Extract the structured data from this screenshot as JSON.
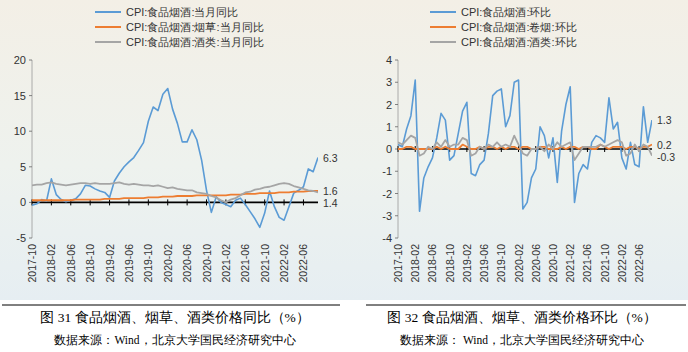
{
  "chart_data": [
    {
      "type": "line",
      "title": "图 31 食品烟酒、烟草、酒类价格同比（%）",
      "subtitle": "数据来源：Wind，北京大学国民经济研究中心",
      "categories": [
        "2017-10",
        null,
        null,
        null,
        "2018-02",
        null,
        null,
        null,
        "2018-06",
        null,
        null,
        null,
        "2018-10",
        null,
        null,
        null,
        "2019-02",
        null,
        null,
        null,
        "2019-06",
        null,
        null,
        null,
        "2019-10",
        null,
        null,
        null,
        "2020-02",
        null,
        null,
        null,
        "2020-06",
        null,
        null,
        null,
        "2020-10",
        null,
        null,
        null,
        "2021-02",
        null,
        null,
        null,
        "2021-06",
        null,
        null,
        null,
        "2021-10",
        null,
        null,
        null,
        "2022-02",
        null,
        null,
        null,
        "2022-06",
        null,
        null,
        null
      ],
      "series": [
        {
          "name": "CPI:食品烟酒:当月同比",
          "color": "#5b9bd5",
          "values": [
            -0.4,
            -0.2,
            0.4,
            0.2,
            3.3,
            1.1,
            0.4,
            0.1,
            0.3,
            0.5,
            1.2,
            2.4,
            2.3,
            1.9,
            1.6,
            1.4,
            0.7,
            3.0,
            4.1,
            5.0,
            5.7,
            6.3,
            7.3,
            8.4,
            11.4,
            13.4,
            12.9,
            15.2,
            16.0,
            13.1,
            11.1,
            8.5,
            8.5,
            10.2,
            8.8,
            5.9,
            1.7,
            -1.4,
            0.8,
            0.0,
            -0.3,
            -0.6,
            0.3,
            0.6,
            -0.3,
            -1.3,
            -2.3,
            -3.5,
            -1.5,
            1.6,
            -0.6,
            -2.1,
            -2.5,
            -0.6,
            1.3,
            1.7,
            2.2,
            4.7,
            4.3,
            6.3
          ]
        },
        {
          "name": "CPI:食品烟酒:烟草:当月同比",
          "color": "#ed7d31",
          "values": [
            0.3,
            0.3,
            0.3,
            0.3,
            0.3,
            0.3,
            0.3,
            0.3,
            0.3,
            0.4,
            0.4,
            0.4,
            0.4,
            0.4,
            0.4,
            0.5,
            0.5,
            0.5,
            0.5,
            0.6,
            0.6,
            0.6,
            0.6,
            0.6,
            0.7,
            0.7,
            0.7,
            0.8,
            0.8,
            0.8,
            0.9,
            0.9,
            0.9,
            0.9,
            1.0,
            1.0,
            1.0,
            1.0,
            1.0,
            1.0,
            1.0,
            1.1,
            1.1,
            1.1,
            1.2,
            1.2,
            1.2,
            1.3,
            1.3,
            1.3,
            1.3,
            1.4,
            1.4,
            1.4,
            1.5,
            1.5,
            1.5,
            1.6,
            1.6,
            1.6
          ]
        },
        {
          "name": "CPI:食品烟酒:酒类:当月同比",
          "color": "#a5a5a5",
          "values": [
            2.4,
            2.5,
            2.5,
            2.7,
            2.8,
            2.6,
            2.5,
            2.4,
            2.5,
            2.6,
            2.7,
            2.7,
            2.6,
            2.7,
            2.6,
            2.6,
            2.6,
            2.7,
            2.8,
            2.6,
            2.5,
            2.6,
            2.5,
            2.4,
            2.4,
            2.3,
            2.4,
            2.2,
            2.0,
            2.1,
            1.9,
            1.8,
            1.7,
            1.7,
            1.4,
            1.3,
            1.2,
            0.9,
            0.7,
            0.3,
            0.0,
            0.4,
            0.6,
            1.0,
            1.4,
            1.5,
            1.8,
            1.9,
            2.1,
            2.2,
            2.4,
            2.6,
            2.7,
            2.6,
            2.3,
            2.1,
            1.9,
            1.7,
            1.6,
            1.4
          ]
        }
      ],
      "annotations": [
        "6.3",
        "1.6",
        "1.4"
      ],
      "ylim": [
        -5,
        20
      ],
      "yticks": [
        -5,
        0,
        5,
        10,
        15,
        20
      ],
      "grid": false,
      "legend": "top"
    },
    {
      "type": "line",
      "title": "图 32 食品烟酒、烟草、酒类价格环比（%）",
      "subtitle": "数据来源：  Wind，北京大学国民经济研究中心",
      "categories": [
        "2017-10",
        null,
        null,
        null,
        "2018-02",
        null,
        null,
        null,
        "2018-06",
        null,
        null,
        null,
        "2018-10",
        null,
        null,
        null,
        "2019-02",
        null,
        null,
        null,
        "2019-06",
        null,
        null,
        null,
        "2019-10",
        null,
        null,
        null,
        "2020-02",
        null,
        null,
        null,
        "2020-06",
        null,
        null,
        null,
        "2020-10",
        null,
        null,
        null,
        "2021-02",
        null,
        null,
        null,
        "2021-06",
        null,
        null,
        null,
        "2021-10",
        null,
        null,
        null,
        "2022-02",
        null,
        null,
        null,
        "2022-06",
        null,
        null,
        null
      ],
      "series": [
        {
          "name": "CPI:食品烟酒:环比",
          "color": "#5b9bd5",
          "values": [
            0.2,
            0.1,
            0.9,
            1.5,
            3.1,
            -2.8,
            -1.3,
            -0.8,
            -0.4,
            0.5,
            1.6,
            1.3,
            -0.5,
            -0.3,
            0.7,
            1.7,
            2.1,
            -1.1,
            -1.2,
            -0.7,
            -0.5,
            0.7,
            2.4,
            2.6,
            2.7,
            1.0,
            1.5,
            3.0,
            3.1,
            -2.7,
            -2.4,
            -1.3,
            -0.9,
            1.0,
            0.6,
            -0.4,
            0.5,
            -1.5,
            0.8,
            2.0,
            2.8,
            -2.4,
            -1.1,
            -0.7,
            -0.9,
            0.3,
            0.6,
            0.5,
            0.3,
            2.3,
            0.9,
            1.2,
            -0.4,
            -0.9,
            0.3,
            -0.7,
            -0.8,
            1.9,
            0.3,
            1.3
          ]
        },
        {
          "name": "CPI:食品烟酒:卷烟:环比",
          "color": "#ed7d31",
          "values": [
            0.0,
            0.0,
            0.1,
            0.1,
            0.0,
            0.0,
            0.0,
            0.0,
            0.0,
            0.1,
            0.0,
            0.1,
            0.0,
            0.0,
            0.0,
            0.2,
            0.1,
            0.0,
            0.0,
            0.1,
            0.0,
            0.1,
            0.1,
            0.0,
            0.1,
            0.0,
            0.1,
            0.1,
            0.0,
            0.1,
            0.1,
            0.0,
            0.0,
            0.1,
            0.1,
            0.0,
            0.0,
            0.0,
            0.1,
            0.0,
            0.1,
            0.1,
            0.0,
            0.1,
            0.1,
            0.0,
            0.0,
            0.2,
            0.1,
            0.0,
            0.1,
            0.1,
            0.1,
            0.0,
            0.1,
            0.1,
            0.0,
            0.1,
            0.1,
            0.2
          ]
        },
        {
          "name": "CPI:食品烟酒:酒类:环比",
          "color": "#a5a5a5",
          "values": [
            0.3,
            0.2,
            0.4,
            0.6,
            0.5,
            -0.3,
            -0.2,
            0.1,
            0.0,
            0.3,
            0.1,
            0.4,
            0.1,
            0.2,
            0.2,
            0.5,
            0.4,
            -0.3,
            -0.2,
            0.1,
            0.0,
            0.2,
            0.1,
            0.3,
            0.1,
            0.2,
            0.1,
            0.6,
            0.2,
            -0.2,
            -0.3,
            0.0,
            0.0,
            0.1,
            -0.1,
            0.2,
            0.0,
            0.3,
            0.1,
            0.2,
            0.3,
            -0.5,
            -0.2,
            0.1,
            0.1,
            0.1,
            0.1,
            0.2,
            0.1,
            0.2,
            0.3,
            0.4,
            0.3,
            -0.3,
            -0.2,
            0.2,
            -0.1,
            0.2,
            0.1,
            -0.3
          ]
        }
      ],
      "annotations": [
        "1.3",
        "0.2",
        "-0.3"
      ],
      "ylim": [
        -4,
        4
      ],
      "yticks": [
        -4,
        -3,
        -2,
        -1,
        0,
        1,
        2,
        3,
        4
      ],
      "grid": false,
      "legend": "top"
    }
  ]
}
